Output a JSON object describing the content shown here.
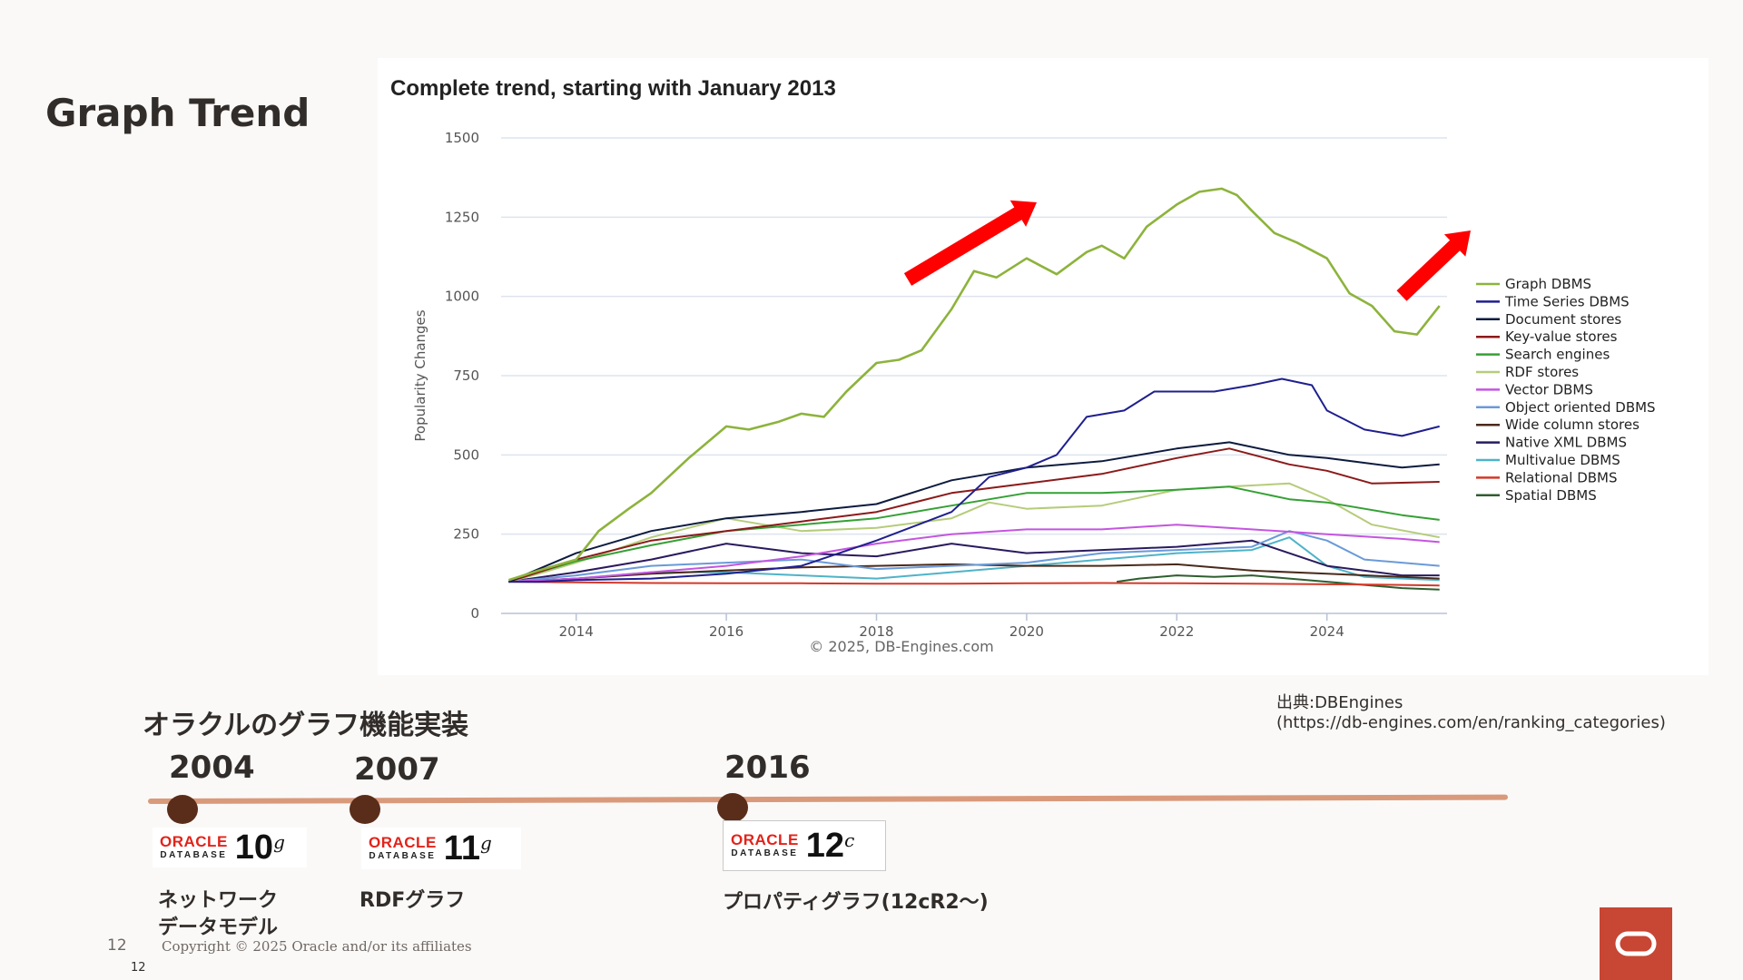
{
  "slide": {
    "title": "Graph Trend",
    "page_number": "12",
    "page_number_small": "12",
    "copyright": "Copyright © 2025 Oracle and/or its affiliates",
    "source_label": "出典:DBEngines",
    "source_url": "(https://db-engines.com/en/ranking_categories)"
  },
  "timeline": {
    "heading": "オラクルのグラフ機能実装",
    "milestones": [
      {
        "year": "2004",
        "logo_brand": "ORACLE",
        "logo_sub": "DATABASE",
        "logo_version": "10",
        "logo_suffix": "g",
        "desc_line1": "ネットワーク",
        "desc_line2": "データモデル"
      },
      {
        "year": "2007",
        "logo_brand": "ORACLE",
        "logo_sub": "DATABASE",
        "logo_version": "11",
        "logo_suffix": "g",
        "desc_line1": "RDFグラフ",
        "desc_line2": ""
      },
      {
        "year": "2016",
        "logo_brand": "ORACLE",
        "logo_sub": "DATABASE",
        "logo_version": "12",
        "logo_suffix": "c",
        "desc_line1": "プロパティグラフ(12cR2～)",
        "desc_line2": ""
      }
    ]
  },
  "icons": {
    "arrows": [
      "trend-up-arrow-icon",
      "trend-up-arrow-icon"
    ],
    "badge": "oracle-o-icon"
  },
  "colors": {
    "arrow": "#ff0000",
    "badge": "#c74634",
    "timeline_line": "#d99a7c",
    "timeline_dot": "#5a2d1a"
  },
  "chart_data": {
    "type": "line",
    "title": "Complete trend, starting with January 2013",
    "ylabel": "Popularity Changes",
    "xlabel": "",
    "credit": "© 2025, DB-Engines.com",
    "xlim": [
      2013,
      2025.6
    ],
    "ylim": [
      0,
      1500
    ],
    "x_ticks": [
      "2014",
      "2016",
      "2018",
      "2020",
      "2022",
      "2024"
    ],
    "y_ticks": [
      "0",
      "250",
      "500",
      "750",
      "1000",
      "1250",
      "1500"
    ],
    "grid": true,
    "legend_position": "right",
    "series": [
      {
        "name": "Graph DBMS",
        "color": "#8db33c",
        "x": [
          2013.1,
          2013.5,
          2014,
          2014.3,
          2014.7,
          2015,
          2015.5,
          2016,
          2016.3,
          2016.7,
          2017,
          2017.3,
          2017.6,
          2018,
          2018.3,
          2018.6,
          2019,
          2019.3,
          2019.6,
          2020,
          2020.4,
          2020.8,
          2021,
          2021.3,
          2021.6,
          2022,
          2022.3,
          2022.6,
          2022.8,
          2023,
          2023.3,
          2023.6,
          2024,
          2024.3,
          2024.6,
          2024.9,
          2025.2,
          2025.5
        ],
        "values": [
          105,
          135,
          170,
          260,
          330,
          380,
          490,
          590,
          580,
          605,
          630,
          620,
          700,
          790,
          800,
          830,
          960,
          1080,
          1060,
          1120,
          1070,
          1140,
          1160,
          1120,
          1220,
          1290,
          1330,
          1340,
          1320,
          1270,
          1200,
          1170,
          1120,
          1010,
          970,
          890,
          880,
          970
        ]
      },
      {
        "name": "Time Series DBMS",
        "color": "#1f1f8f",
        "x": [
          2013.1,
          2013.5,
          2014,
          2015,
          2016,
          2017,
          2018,
          2019,
          2019.5,
          2020,
          2020.4,
          2020.8,
          2021.3,
          2021.7,
          2022,
          2022.5,
          2023,
          2023.4,
          2023.8,
          2024,
          2024.5,
          2025,
          2025.5
        ],
        "values": [
          100,
          100,
          105,
          110,
          125,
          150,
          230,
          320,
          430,
          460,
          500,
          620,
          640,
          700,
          700,
          700,
          720,
          740,
          720,
          640,
          580,
          560,
          590
        ]
      },
      {
        "name": "Document stores",
        "color": "#0d1b3e",
        "x": [
          2013.1,
          2013.5,
          2014,
          2015,
          2016,
          2017,
          2018,
          2019,
          2020,
          2021,
          2022,
          2022.7,
          2023.5,
          2024,
          2025,
          2025.5
        ],
        "values": [
          100,
          140,
          190,
          260,
          300,
          320,
          345,
          420,
          460,
          480,
          520,
          540,
          500,
          490,
          460,
          470
        ]
      },
      {
        "name": "Key-value stores",
        "color": "#8b1a1a",
        "x": [
          2013.1,
          2013.5,
          2014,
          2015,
          2016,
          2017,
          2018,
          2019,
          2020,
          2021,
          2022,
          2022.7,
          2023.5,
          2024,
          2024.6,
          2025.5
        ],
        "values": [
          100,
          130,
          170,
          230,
          260,
          290,
          320,
          380,
          410,
          440,
          490,
          520,
          470,
          450,
          410,
          415
        ]
      },
      {
        "name": "Search engines",
        "color": "#35a035",
        "x": [
          2013.1,
          2013.5,
          2014,
          2015,
          2016,
          2017,
          2018,
          2019,
          2020,
          2021,
          2022,
          2022.7,
          2023.5,
          2024,
          2025,
          2025.5
        ],
        "values": [
          100,
          130,
          165,
          215,
          260,
          280,
          300,
          340,
          380,
          380,
          390,
          400,
          360,
          350,
          310,
          295
        ]
      },
      {
        "name": "RDF stores",
        "color": "#b5cc7a",
        "x": [
          2013.1,
          2013.5,
          2014,
          2015,
          2016,
          2017,
          2018,
          2019,
          2019.5,
          2020,
          2021,
          2022,
          2022.7,
          2023.5,
          2024,
          2024.6,
          2025.5
        ],
        "values": [
          100,
          125,
          160,
          240,
          300,
          260,
          270,
          300,
          350,
          330,
          340,
          390,
          400,
          410,
          360,
          280,
          240
        ]
      },
      {
        "name": "Vector DBMS",
        "color": "#c455e0",
        "x": [
          2013.1,
          2014,
          2015,
          2016,
          2017,
          2018,
          2019,
          2020,
          2021,
          2022,
          2023,
          2024,
          2025,
          2025.5
        ],
        "values": [
          100,
          110,
          130,
          150,
          180,
          220,
          250,
          265,
          265,
          280,
          265,
          250,
          235,
          225
        ]
      },
      {
        "name": "Object oriented DBMS",
        "color": "#6a9ad8",
        "x": [
          2013.1,
          2014,
          2015,
          2016,
          2017,
          2018,
          2019,
          2020,
          2021,
          2022,
          2023,
          2023.5,
          2024,
          2024.5,
          2025.5
        ],
        "values": [
          100,
          120,
          150,
          160,
          170,
          140,
          150,
          160,
          190,
          200,
          210,
          260,
          230,
          170,
          150
        ]
      },
      {
        "name": "Wide column stores",
        "color": "#4a2a1a",
        "x": [
          2013.1,
          2014,
          2015,
          2016,
          2017,
          2018,
          2019,
          2020,
          2021,
          2022,
          2023,
          2024,
          2025,
          2025.5
        ],
        "values": [
          100,
          110,
          125,
          135,
          145,
          150,
          155,
          150,
          150,
          155,
          135,
          125,
          115,
          110
        ]
      },
      {
        "name": "Native XML DBMS",
        "color": "#2a1a5e",
        "x": [
          2013.1,
          2014,
          2015,
          2016,
          2017,
          2018,
          2019,
          2020,
          2021,
          2022,
          2023,
          2024,
          2025,
          2025.5
        ],
        "values": [
          100,
          130,
          170,
          220,
          190,
          180,
          220,
          190,
          200,
          210,
          230,
          150,
          120,
          120
        ]
      },
      {
        "name": "Multivalue DBMS",
        "color": "#4fb3c8",
        "x": [
          2013.1,
          2014,
          2015,
          2016,
          2017,
          2018,
          2019,
          2020,
          2021,
          2022,
          2023,
          2023.5,
          2024,
          2024.5,
          2025.5
        ],
        "values": [
          100,
          110,
          130,
          130,
          120,
          110,
          130,
          150,
          170,
          190,
          200,
          240,
          150,
          115,
          105
        ]
      },
      {
        "name": "Relational DBMS",
        "color": "#d23a2a",
        "x": [
          2013.1,
          2014,
          2015,
          2016,
          2017,
          2018,
          2019,
          2020,
          2021,
          2022,
          2023,
          2024,
          2025,
          2025.5
        ],
        "values": [
          100,
          98,
          96,
          95,
          95,
          94,
          94,
          95,
          96,
          95,
          94,
          92,
          90,
          88
        ]
      },
      {
        "name": "Spatial DBMS",
        "color": "#2e5e2e",
        "x": [
          2021.2,
          2021.5,
          2022,
          2022.5,
          2023,
          2023.5,
          2024,
          2024.5,
          2025,
          2025.5
        ],
        "values": [
          100,
          110,
          120,
          115,
          120,
          110,
          100,
          90,
          80,
          75
        ]
      }
    ]
  }
}
